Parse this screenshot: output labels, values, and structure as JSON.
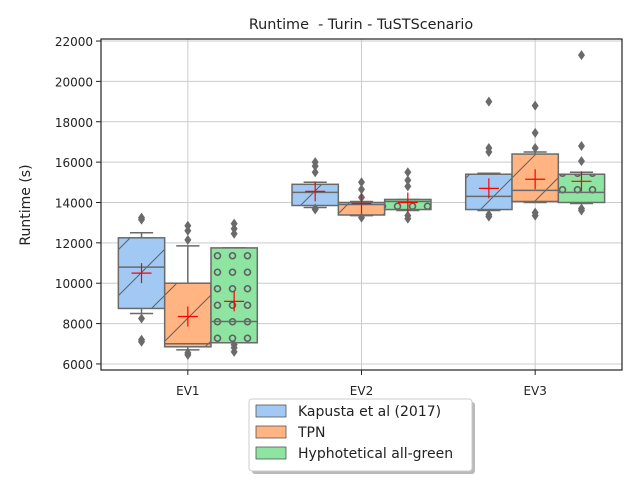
{
  "chart_data": {
    "type": "box",
    "title": "Runtime  - Turin - TuSTScenario",
    "ylabel": "Runtime (s)",
    "xlabel": "",
    "ylim": [
      5700,
      22100
    ],
    "yticks": [
      6000,
      8000,
      10000,
      12000,
      14000,
      16000,
      18000,
      20000,
      22000
    ],
    "grid": true,
    "legend_position": "bottom-center",
    "categories": [
      "EV1",
      "EV2",
      "EV3"
    ],
    "series": [
      {
        "name": "Kapusta et al (2017)",
        "color": "#a1c9f4",
        "hatch": "diagonal",
        "boxes": [
          {
            "whislo": 8500,
            "q1": 8750,
            "med": 10800,
            "q3": 12250,
            "whishi": 12500,
            "mean": 10500,
            "fliers": [
              13250,
              13150,
              8250,
              7200,
              7100
            ]
          },
          {
            "whislo": 13750,
            "q1": 13850,
            "med": 14500,
            "q3": 14900,
            "whishi": 15000,
            "mean": 14550,
            "fliers": [
              16000,
              15800,
              15500,
              13700,
              13650
            ]
          },
          {
            "whislo": 13600,
            "q1": 13650,
            "med": 14300,
            "q3": 15400,
            "whishi": 15450,
            "mean": 14700,
            "fliers": [
              19000,
              16700,
              16500,
              13400,
              13300
            ]
          }
        ]
      },
      {
        "name": "TPN",
        "color": "#ffb482",
        "hatch": "diagonal",
        "boxes": [
          {
            "whislo": 6700,
            "q1": 6850,
            "med": 7000,
            "q3": 10000,
            "whishi": 11850,
            "mean": 8350,
            "fliers": [
              12850,
              12600,
              12150,
              6550,
              6450
            ]
          },
          {
            "whislo": 13350,
            "q1": 13380,
            "med": 13900,
            "q3": 14000,
            "whishi": 14050,
            "mean": 13950,
            "fliers": [
              15000,
              14650,
              14250,
              13250
            ]
          },
          {
            "whislo": 14000,
            "q1": 14050,
            "med": 14600,
            "q3": 16400,
            "whishi": 16500,
            "mean": 15150,
            "fliers": [
              18800,
              17450,
              16700,
              13500,
              13350
            ]
          }
        ]
      },
      {
        "name": "Hyphotetical all-green",
        "color": "#8de5a1",
        "hatch": "circles",
        "boxes": [
          {
            "whislo": 7050,
            "q1": 7050,
            "med": 8100,
            "q3": 11750,
            "whishi": 11750,
            "mean": 9100,
            "fliers": [
              12950,
              12700,
              12450,
              6950,
              6800,
              6600
            ]
          },
          {
            "whislo": 13600,
            "q1": 13650,
            "med": 14050,
            "q3": 14150,
            "whishi": 14150,
            "mean": 14000,
            "fliers": [
              15500,
              15100,
              14800,
              13350,
              13200
            ]
          },
          {
            "whislo": 13950,
            "q1": 14000,
            "med": 14500,
            "q3": 15400,
            "whishi": 15500,
            "mean": 15050,
            "fliers": [
              21300,
              16800,
              16050,
              13700,
              13600
            ]
          }
        ]
      }
    ]
  }
}
